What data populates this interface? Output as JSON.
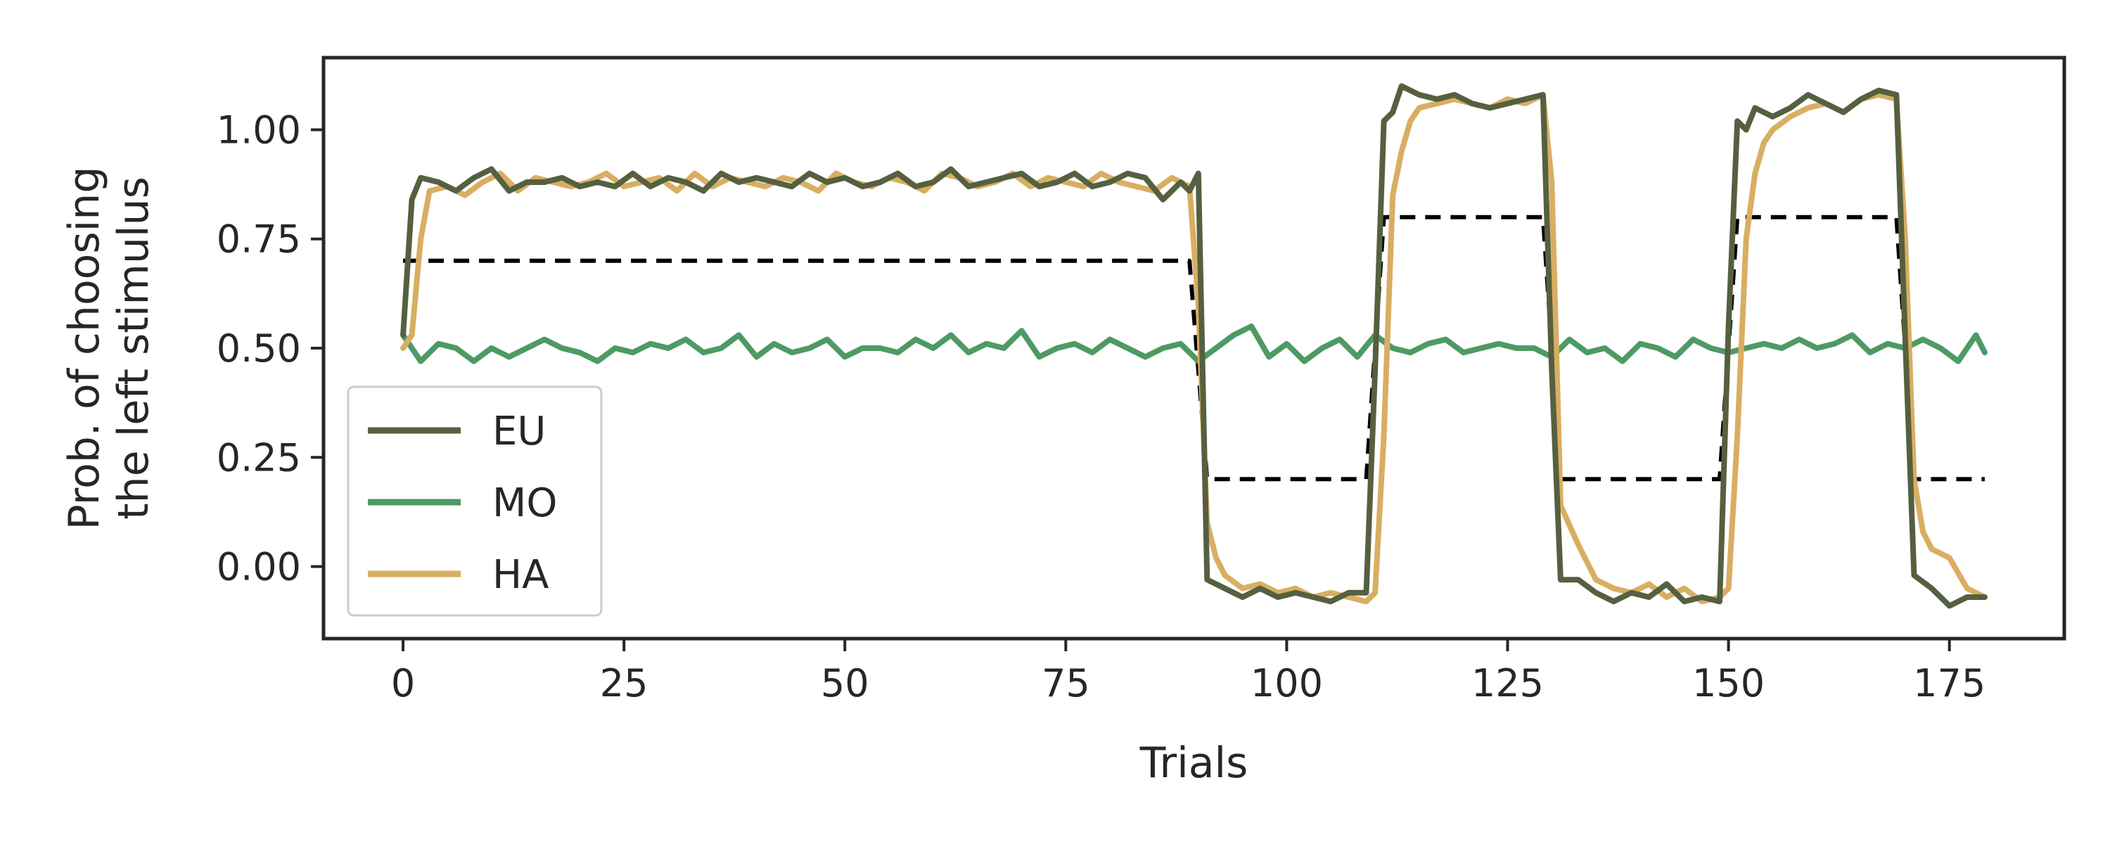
{
  "chart_data": {
    "type": "line",
    "xlabel": "Trials",
    "ylabel_lines": [
      "Prob. of choosing",
      "the left stimulus"
    ],
    "xlim": [
      -9,
      188
    ],
    "ylim": [
      -0.165,
      1.165
    ],
    "xticks": [
      0,
      25,
      50,
      75,
      100,
      125,
      150,
      175
    ],
    "xtick_labels": [
      "0",
      "25",
      "50",
      "75",
      "100",
      "125",
      "150",
      "175"
    ],
    "yticks": [
      0.0,
      0.25,
      0.5,
      0.75,
      1.0
    ],
    "ytick_labels": [
      "0.00",
      "0.25",
      "0.50",
      "0.75",
      "1.00"
    ],
    "grid": false,
    "legend": {
      "placement": "lower-left",
      "entries": [
        "EU",
        "MO",
        "HA"
      ]
    },
    "series": [
      {
        "name": "EU",
        "color": "#556040",
        "x": [
          0,
          1,
          2,
          4,
          6,
          8,
          10,
          12,
          14,
          16,
          18,
          20,
          22,
          24,
          26,
          28,
          30,
          32,
          34,
          36,
          38,
          40,
          42,
          44,
          46,
          48,
          50,
          52,
          54,
          56,
          58,
          60,
          62,
          64,
          66,
          68,
          70,
          72,
          74,
          76,
          78,
          80,
          82,
          84,
          86,
          88,
          89,
          90,
          91,
          93,
          95,
          97,
          99,
          101,
          103,
          105,
          107,
          109,
          110,
          111,
          112,
          113,
          115,
          117,
          119,
          121,
          123,
          125,
          127,
          129,
          130,
          131,
          133,
          135,
          137,
          139,
          141,
          143,
          145,
          147,
          149,
          150,
          151,
          152,
          153,
          155,
          157,
          159,
          161,
          163,
          165,
          167,
          169,
          170,
          171,
          173,
          175,
          177,
          179
        ],
        "y": [
          0.53,
          0.84,
          0.89,
          0.88,
          0.86,
          0.89,
          0.91,
          0.86,
          0.88,
          0.88,
          0.89,
          0.87,
          0.88,
          0.87,
          0.9,
          0.87,
          0.89,
          0.88,
          0.86,
          0.9,
          0.88,
          0.89,
          0.88,
          0.87,
          0.9,
          0.88,
          0.89,
          0.87,
          0.88,
          0.9,
          0.87,
          0.88,
          0.91,
          0.87,
          0.88,
          0.89,
          0.9,
          0.87,
          0.88,
          0.9,
          0.87,
          0.88,
          0.9,
          0.89,
          0.84,
          0.88,
          0.86,
          0.9,
          -0.03,
          -0.05,
          -0.07,
          -0.05,
          -0.07,
          -0.06,
          -0.07,
          -0.08,
          -0.06,
          -0.06,
          0.45,
          1.02,
          1.04,
          1.1,
          1.08,
          1.07,
          1.08,
          1.06,
          1.05,
          1.06,
          1.07,
          1.08,
          0.45,
          -0.03,
          -0.03,
          -0.06,
          -0.08,
          -0.06,
          -0.07,
          -0.04,
          -0.08,
          -0.07,
          -0.08,
          0.55,
          1.02,
          1.0,
          1.05,
          1.03,
          1.05,
          1.08,
          1.06,
          1.04,
          1.07,
          1.09,
          1.08,
          0.52,
          -0.02,
          -0.05,
          -0.09,
          -0.07,
          -0.07
        ]
      },
      {
        "name": "MO",
        "color": "#4e9a63",
        "x": [
          0,
          2,
          4,
          6,
          8,
          10,
          12,
          14,
          16,
          18,
          20,
          22,
          24,
          26,
          28,
          30,
          32,
          34,
          36,
          38,
          40,
          42,
          44,
          46,
          48,
          50,
          52,
          54,
          56,
          58,
          60,
          62,
          64,
          66,
          68,
          70,
          72,
          74,
          76,
          78,
          80,
          82,
          84,
          86,
          88,
          90,
          92,
          94,
          96,
          98,
          100,
          102,
          104,
          106,
          108,
          110,
          112,
          114,
          116,
          118,
          120,
          122,
          124,
          126,
          128,
          130,
          132,
          134,
          136,
          138,
          140,
          142,
          144,
          146,
          148,
          150,
          152,
          154,
          156,
          158,
          160,
          162,
          164,
          166,
          168,
          170,
          172,
          174,
          176,
          178,
          179
        ],
        "y": [
          0.53,
          0.47,
          0.51,
          0.5,
          0.47,
          0.5,
          0.48,
          0.5,
          0.52,
          0.5,
          0.49,
          0.47,
          0.5,
          0.49,
          0.51,
          0.5,
          0.52,
          0.49,
          0.5,
          0.53,
          0.48,
          0.51,
          0.49,
          0.5,
          0.52,
          0.48,
          0.5,
          0.5,
          0.49,
          0.52,
          0.5,
          0.53,
          0.49,
          0.51,
          0.5,
          0.54,
          0.48,
          0.5,
          0.51,
          0.49,
          0.52,
          0.5,
          0.48,
          0.5,
          0.51,
          0.47,
          0.5,
          0.53,
          0.55,
          0.48,
          0.51,
          0.47,
          0.5,
          0.52,
          0.48,
          0.53,
          0.5,
          0.49,
          0.51,
          0.52,
          0.49,
          0.5,
          0.51,
          0.5,
          0.5,
          0.48,
          0.52,
          0.49,
          0.5,
          0.47,
          0.51,
          0.5,
          0.48,
          0.52,
          0.5,
          0.49,
          0.5,
          0.51,
          0.5,
          0.52,
          0.5,
          0.51,
          0.53,
          0.49,
          0.51,
          0.5,
          0.52,
          0.5,
          0.47,
          0.53,
          0.49
        ]
      },
      {
        "name": "HA",
        "color": "#d9ae62",
        "x": [
          0,
          1,
          2,
          3,
          5,
          7,
          9,
          11,
          13,
          15,
          17,
          19,
          21,
          23,
          25,
          27,
          29,
          31,
          33,
          35,
          37,
          39,
          41,
          43,
          45,
          47,
          49,
          51,
          53,
          55,
          57,
          59,
          61,
          63,
          65,
          67,
          69,
          71,
          73,
          75,
          77,
          79,
          81,
          83,
          85,
          87,
          89,
          90,
          91,
          92,
          93,
          95,
          97,
          99,
          101,
          103,
          105,
          107,
          109,
          110,
          111,
          112,
          113,
          114,
          115,
          117,
          119,
          121,
          123,
          125,
          127,
          129,
          130,
          131,
          133,
          135,
          137,
          139,
          141,
          143,
          145,
          147,
          149,
          150,
          151,
          152,
          153,
          154,
          155,
          157,
          159,
          161,
          163,
          165,
          167,
          169,
          170,
          171,
          172,
          173,
          175,
          177,
          179
        ],
        "y": [
          0.5,
          0.53,
          0.75,
          0.86,
          0.87,
          0.85,
          0.88,
          0.9,
          0.86,
          0.89,
          0.88,
          0.87,
          0.88,
          0.9,
          0.87,
          0.88,
          0.89,
          0.86,
          0.9,
          0.87,
          0.89,
          0.88,
          0.87,
          0.89,
          0.88,
          0.86,
          0.9,
          0.88,
          0.87,
          0.89,
          0.88,
          0.86,
          0.9,
          0.89,
          0.87,
          0.88,
          0.9,
          0.87,
          0.89,
          0.88,
          0.87,
          0.9,
          0.88,
          0.87,
          0.86,
          0.89,
          0.87,
          0.6,
          0.1,
          0.02,
          -0.02,
          -0.05,
          -0.04,
          -0.06,
          -0.05,
          -0.07,
          -0.06,
          -0.07,
          -0.08,
          -0.06,
          0.3,
          0.85,
          0.95,
          1.02,
          1.05,
          1.06,
          1.07,
          1.06,
          1.05,
          1.07,
          1.06,
          1.08,
          0.88,
          0.14,
          0.05,
          -0.03,
          -0.05,
          -0.06,
          -0.04,
          -0.07,
          -0.05,
          -0.08,
          -0.07,
          -0.05,
          0.3,
          0.75,
          0.9,
          0.97,
          1.0,
          1.03,
          1.05,
          1.06,
          1.04,
          1.07,
          1.08,
          1.07,
          0.75,
          0.2,
          0.08,
          0.04,
          0.02,
          -0.05,
          -0.07
        ]
      },
      {
        "name": "",
        "role": "reference-probability",
        "color": "#000000",
        "dashed": true,
        "x": [
          0,
          89,
          90,
          91,
          109,
          110,
          111,
          129,
          130,
          131,
          149,
          150,
          151,
          169,
          170,
          171,
          179
        ],
        "y": [
          0.7,
          0.7,
          0.45,
          0.2,
          0.2,
          0.5,
          0.8,
          0.8,
          0.5,
          0.2,
          0.2,
          0.5,
          0.8,
          0.8,
          0.5,
          0.2,
          0.2
        ]
      }
    ]
  }
}
